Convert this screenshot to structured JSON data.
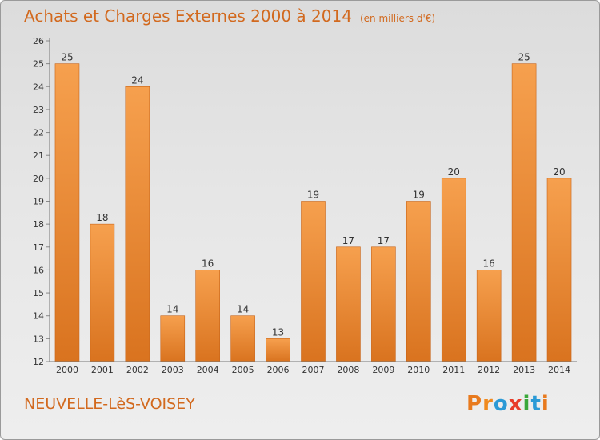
{
  "header": {
    "title": "Achats et Charges Externes 2000 à 2014",
    "unit": "(en milliers d'€)"
  },
  "footer": {
    "commune": "NEUVELLE-LèS-VOISEY",
    "logo_text": "Proxiti"
  },
  "colors": {
    "accent": "#d2691e",
    "bar_light": "#f6a04e",
    "bar_dark": "#d9731f",
    "logo": [
      "#e87a1e",
      "#f08a1e",
      "#2b9ad6",
      "#e83c2a",
      "#3aa83a",
      "#2b9ad6",
      "#e87a1e"
    ]
  },
  "chart_data": {
    "type": "bar",
    "title": "Achats et Charges Externes 2000 à 2014",
    "subtitle": "(en milliers d'€)",
    "categories": [
      "2000",
      "2001",
      "2002",
      "2003",
      "2004",
      "2005",
      "2006",
      "2007",
      "2008",
      "2009",
      "2010",
      "2011",
      "2012",
      "2013",
      "2014"
    ],
    "values": [
      25,
      18,
      24,
      14,
      16,
      14,
      13,
      19,
      17,
      17,
      19,
      20,
      16,
      25,
      20
    ],
    "ylim": [
      12,
      26
    ],
    "yticks": [
      12,
      13,
      14,
      15,
      16,
      17,
      18,
      19,
      20,
      21,
      22,
      23,
      24,
      25,
      26
    ],
    "grid": false,
    "data_labels": true
  }
}
